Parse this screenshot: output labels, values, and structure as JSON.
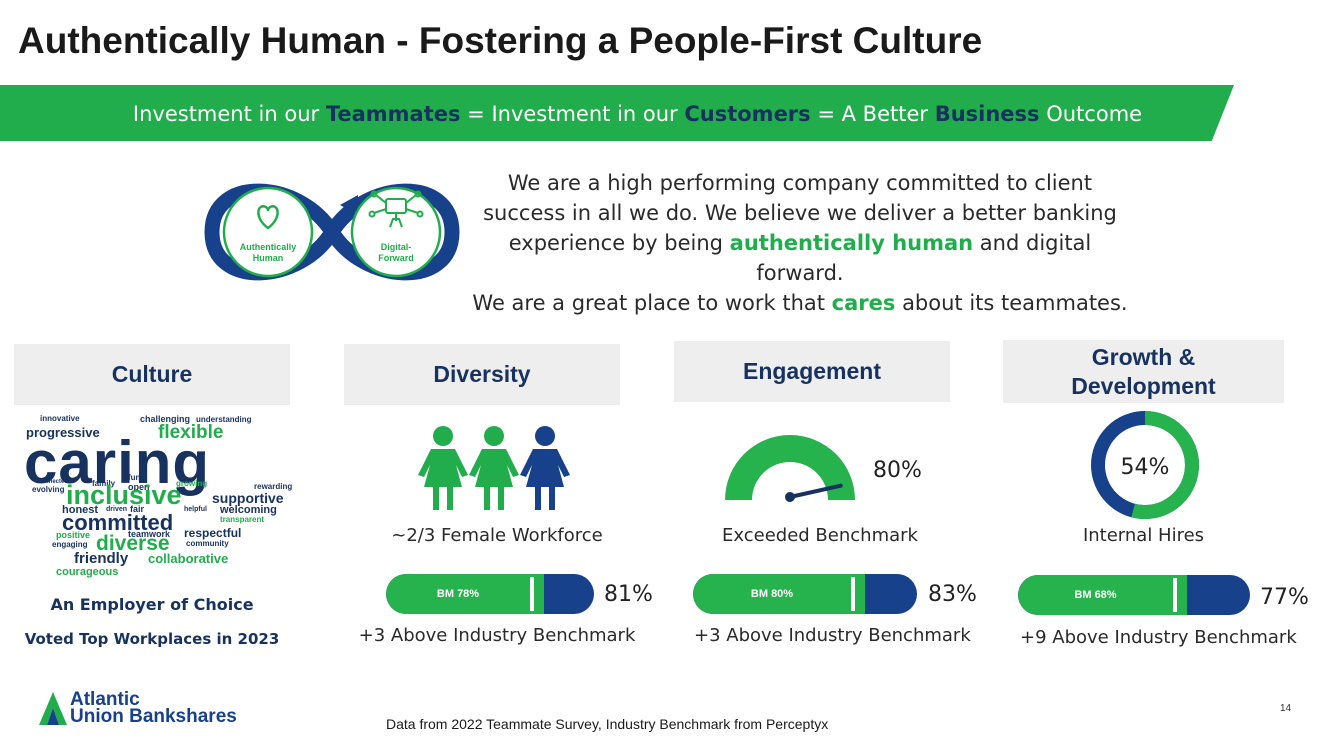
{
  "title": "Authentically Human - Fostering a People-First Culture",
  "banner": {
    "parts": [
      "Investment in our ",
      "Teammates",
      " = Investment in our ",
      "Customers",
      " = A Better ",
      "Business",
      " Outcome"
    ]
  },
  "infinity": {
    "left_label": "Authentically Human",
    "right_label": "Digital-Forward",
    "colors": {
      "ring": "#17418a",
      "accent": "#22ad4d"
    }
  },
  "statement": {
    "line1": "We are a high performing company committed to client",
    "line2": "success in all we do. We believe we deliver a better banking",
    "line3_pre": "experience by being ",
    "line3_hl": "authentically human",
    "line3_post": " and digital forward.",
    "line4_pre": "We are a great place to work that ",
    "line4_hl": "cares",
    "line4_post": " about its teammates."
  },
  "culture": {
    "heading": "Culture",
    "words": [
      "innovative",
      "challenging",
      "understanding",
      "progressive",
      "flexible",
      "caring",
      "connected",
      "evolving",
      "family",
      "fun",
      "open",
      "growing",
      "rewarding",
      "inclusive",
      "supportive",
      "honest",
      "driven",
      "fair",
      "helpful",
      "welcoming",
      "transparent",
      "committed",
      "positive",
      "teamwork",
      "respectful",
      "engaging",
      "diverse",
      "community",
      "friendly",
      "collaborative",
      "courageous"
    ],
    "subtitle": "An Employer of Choice",
    "award": "Voted Top Workplaces in 2023"
  },
  "diversity": {
    "heading": "Diversity",
    "caption": "~2/3 Female Workforce",
    "benchmark": {
      "label": "BM 78%",
      "value": 78,
      "score": 81,
      "score_label": "81%"
    },
    "delta": "+3 Above Industry Benchmark",
    "icons": [
      "female-figure-icon",
      "female-figure-icon",
      "female-figure-icon"
    ]
  },
  "engagement": {
    "heading": "Engagement",
    "gauge_value": 80,
    "gauge_label": "80%",
    "caption": "Exceeded Benchmark",
    "benchmark": {
      "label": "BM 80%",
      "value": 80,
      "score": 83,
      "score_label": "83%"
    },
    "delta": "+3 Above Industry Benchmark"
  },
  "growth": {
    "heading_line1": "Growth &",
    "heading_line2": "Development",
    "donut_value": 54,
    "donut_label": "54%",
    "caption": "Internal Hires",
    "benchmark": {
      "label": "BM 68%",
      "value": 68,
      "score": 77,
      "score_label": "77%"
    },
    "delta": "+9 Above Industry Benchmark"
  },
  "footer": {
    "logo_line1": "Atlantic",
    "logo_line2": "Union Bankshares",
    "source": "Data from 2022 Teammate Survey, Industry Benchmark from Perceptyx",
    "page_number": "14"
  }
}
